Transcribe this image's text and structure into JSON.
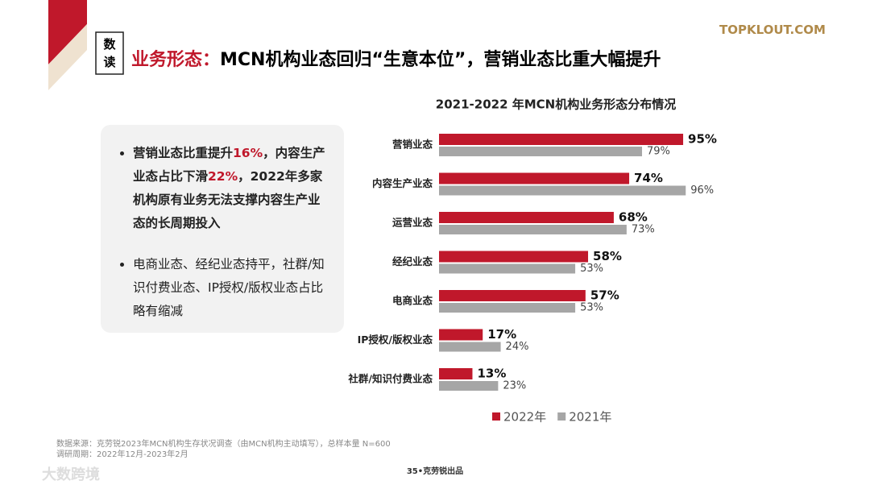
{
  "logo": "TOPKLOUT.COM",
  "badge": "数读",
  "heading": {
    "label": "业务形态：",
    "text": "MCN机构业态回归“生意本位”，营销业态比重大幅提升"
  },
  "bullets": [
    {
      "parts": [
        "营销业态比重提升",
        "16%",
        "，内容生产业态占比下滑",
        "22%",
        "，2022年多家机构原有业务无法支撑内容生产业态的长周期投入"
      ]
    },
    {
      "parts": [
        "电商业态、经纪业态持平，社群/知识付费业态、IP授权/版权业态占比略有缩减"
      ]
    }
  ],
  "chart_data": {
    "type": "bar",
    "orientation": "horizontal",
    "title": "2021-2022 年MCN机构业务形态分布情况",
    "categories": [
      "营销业态",
      "内容生产业态",
      "运营业态",
      "经纪业态",
      "电商业态",
      "IP授权/版权业态",
      "社群/知识付费业态"
    ],
    "series": [
      {
        "name": "2022年",
        "color": "#c0182b",
        "values": [
          95,
          74,
          68,
          58,
          57,
          17,
          13
        ],
        "value_labels": [
          "95%",
          "74%",
          "68%",
          "58%",
          "57%",
          "17%",
          "13%"
        ]
      },
      {
        "name": "2021年",
        "color": "#a6a6a6",
        "values": [
          79,
          96,
          73,
          53,
          53,
          24,
          23
        ],
        "value_labels": [
          "79%",
          "96%",
          "73%",
          "53%",
          "53%",
          "24%",
          "23%"
        ]
      }
    ],
    "xlim": [
      0,
      100
    ],
    "legend": "bottom"
  },
  "footer": {
    "source": "数据来源：克劳锐2023年MCN机构生存状况调查（由MCN机构主动填写），总样本量 N=600",
    "period": "调研周期：2022年12月-2023年2月",
    "page": "35•克劳锐出品"
  },
  "watermark": "大数跨境"
}
